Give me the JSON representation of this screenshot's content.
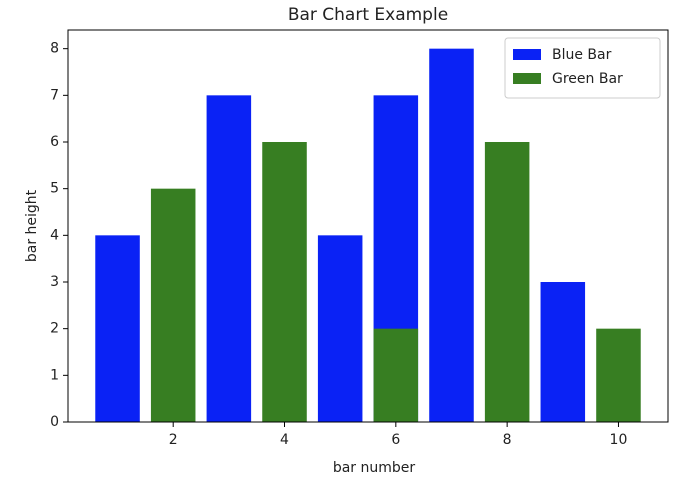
{
  "chart_data": {
    "type": "bar",
    "title": "Bar Chart Example",
    "x_label": "bar number",
    "y_label": "bar height",
    "series": [
      {
        "name": "Blue Bar",
        "color": "#0a22f5",
        "x": [
          1,
          3,
          5,
          6,
          7,
          9
        ],
        "values": [
          4,
          7,
          4,
          7,
          8,
          3
        ]
      },
      {
        "name": "Green Bar",
        "color": "#377e22",
        "x": [
          2,
          4,
          6,
          8,
          10
        ],
        "values": [
          5,
          6,
          2,
          6,
          2
        ]
      }
    ],
    "xlim": [
      0.11,
      10.89
    ],
    "xticks": [
      2,
      4,
      6,
      8,
      10
    ],
    "ylim": [
      0,
      8.4
    ],
    "yticks": [
      0,
      1,
      2,
      3,
      4,
      5,
      6,
      7,
      8
    ],
    "legend": "upper right"
  }
}
